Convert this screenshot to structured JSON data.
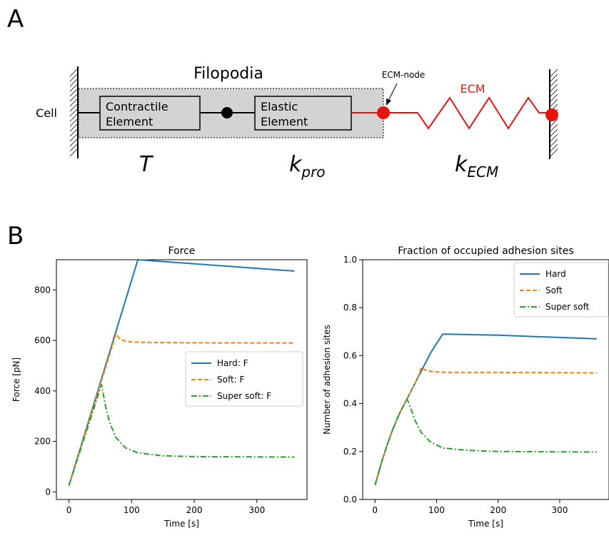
{
  "panel_a": {
    "label": "A",
    "filopodia_label": "Filopodia",
    "cell_label": "Cell",
    "contractile_line1": "Contractile",
    "contractile_line2": "Element",
    "elastic_line1": "Elastic",
    "elastic_line2": "Element",
    "ecm_node_label": "ECM-node",
    "ecm_label": "ECM",
    "sym_t": "T",
    "sym_kpro_main": "k",
    "sym_kpro_sub": "pro",
    "sym_kecm_main": "k",
    "sym_kecm_sub": "ECM",
    "colors": {
      "ecm": "#e8130c",
      "box_fill": "#d3d3d3"
    }
  },
  "panel_b": {
    "label": "B"
  },
  "chart_data": [
    {
      "type": "line",
      "title": "Force",
      "xlabel": "Time [s]",
      "ylabel": "Force [pN]",
      "xlim": [
        -20,
        380
      ],
      "ylim": [
        -30,
        920
      ],
      "xticks": [
        0,
        100,
        200,
        300
      ],
      "yticks": [
        0,
        200,
        400,
        600,
        800
      ],
      "legend_position": "center-right",
      "series": [
        {
          "name": "Hard: F",
          "color": "#1f77b4",
          "dash": "solid",
          "x": [
            0,
            110,
            360
          ],
          "y": [
            25,
            920,
            875
          ]
        },
        {
          "name": "Soft: F",
          "color": "#ff7f0e",
          "dash": "dashed",
          "x": [
            0,
            75,
            82,
            90,
            100,
            120,
            150,
            200,
            360
          ],
          "y": [
            25,
            625,
            605,
            597,
            594,
            593,
            592,
            591,
            590
          ]
        },
        {
          "name": "Super soft: F",
          "color": "#2ca02c",
          "dash": "dashdot",
          "x": [
            0,
            52,
            58,
            65,
            75,
            90,
            110,
            150,
            200,
            360
          ],
          "y": [
            25,
            425,
            345,
            275,
            215,
            175,
            155,
            143,
            140,
            138
          ]
        }
      ]
    },
    {
      "type": "line",
      "title": "Fraction of occupied adhesion sites",
      "xlabel": "Time [s]",
      "ylabel": "Number of adhesion sites",
      "xlim": [
        -20,
        380
      ],
      "ylim": [
        0,
        1.0
      ],
      "xticks": [
        0,
        100,
        200,
        300
      ],
      "yticks": [
        0.0,
        0.2,
        0.4,
        0.6,
        0.8,
        1.0
      ],
      "legend_position": "top-right",
      "series": [
        {
          "name": "Hard",
          "color": "#1f77b4",
          "dash": "solid",
          "x": [
            0,
            10,
            20,
            30,
            40,
            50,
            60,
            70,
            80,
            90,
            100,
            110,
            200,
            360
          ],
          "y": [
            0.06,
            0.15,
            0.23,
            0.3,
            0.36,
            0.41,
            0.46,
            0.51,
            0.56,
            0.61,
            0.65,
            0.69,
            0.685,
            0.67
          ]
        },
        {
          "name": "Soft",
          "color": "#ff7f0e",
          "dash": "dashed",
          "x": [
            0,
            10,
            20,
            30,
            40,
            50,
            60,
            70,
            75,
            82,
            90,
            100,
            120,
            200,
            360
          ],
          "y": [
            0.06,
            0.15,
            0.23,
            0.3,
            0.36,
            0.41,
            0.46,
            0.51,
            0.55,
            0.54,
            0.535,
            0.532,
            0.53,
            0.53,
            0.528
          ]
        },
        {
          "name": "Super soft",
          "color": "#2ca02c",
          "dash": "dashdot",
          "x": [
            0,
            10,
            20,
            30,
            40,
            52,
            58,
            65,
            75,
            90,
            110,
            150,
            200,
            360
          ],
          "y": [
            0.06,
            0.15,
            0.23,
            0.3,
            0.36,
            0.42,
            0.38,
            0.33,
            0.28,
            0.24,
            0.215,
            0.205,
            0.2,
            0.198
          ]
        }
      ]
    }
  ]
}
